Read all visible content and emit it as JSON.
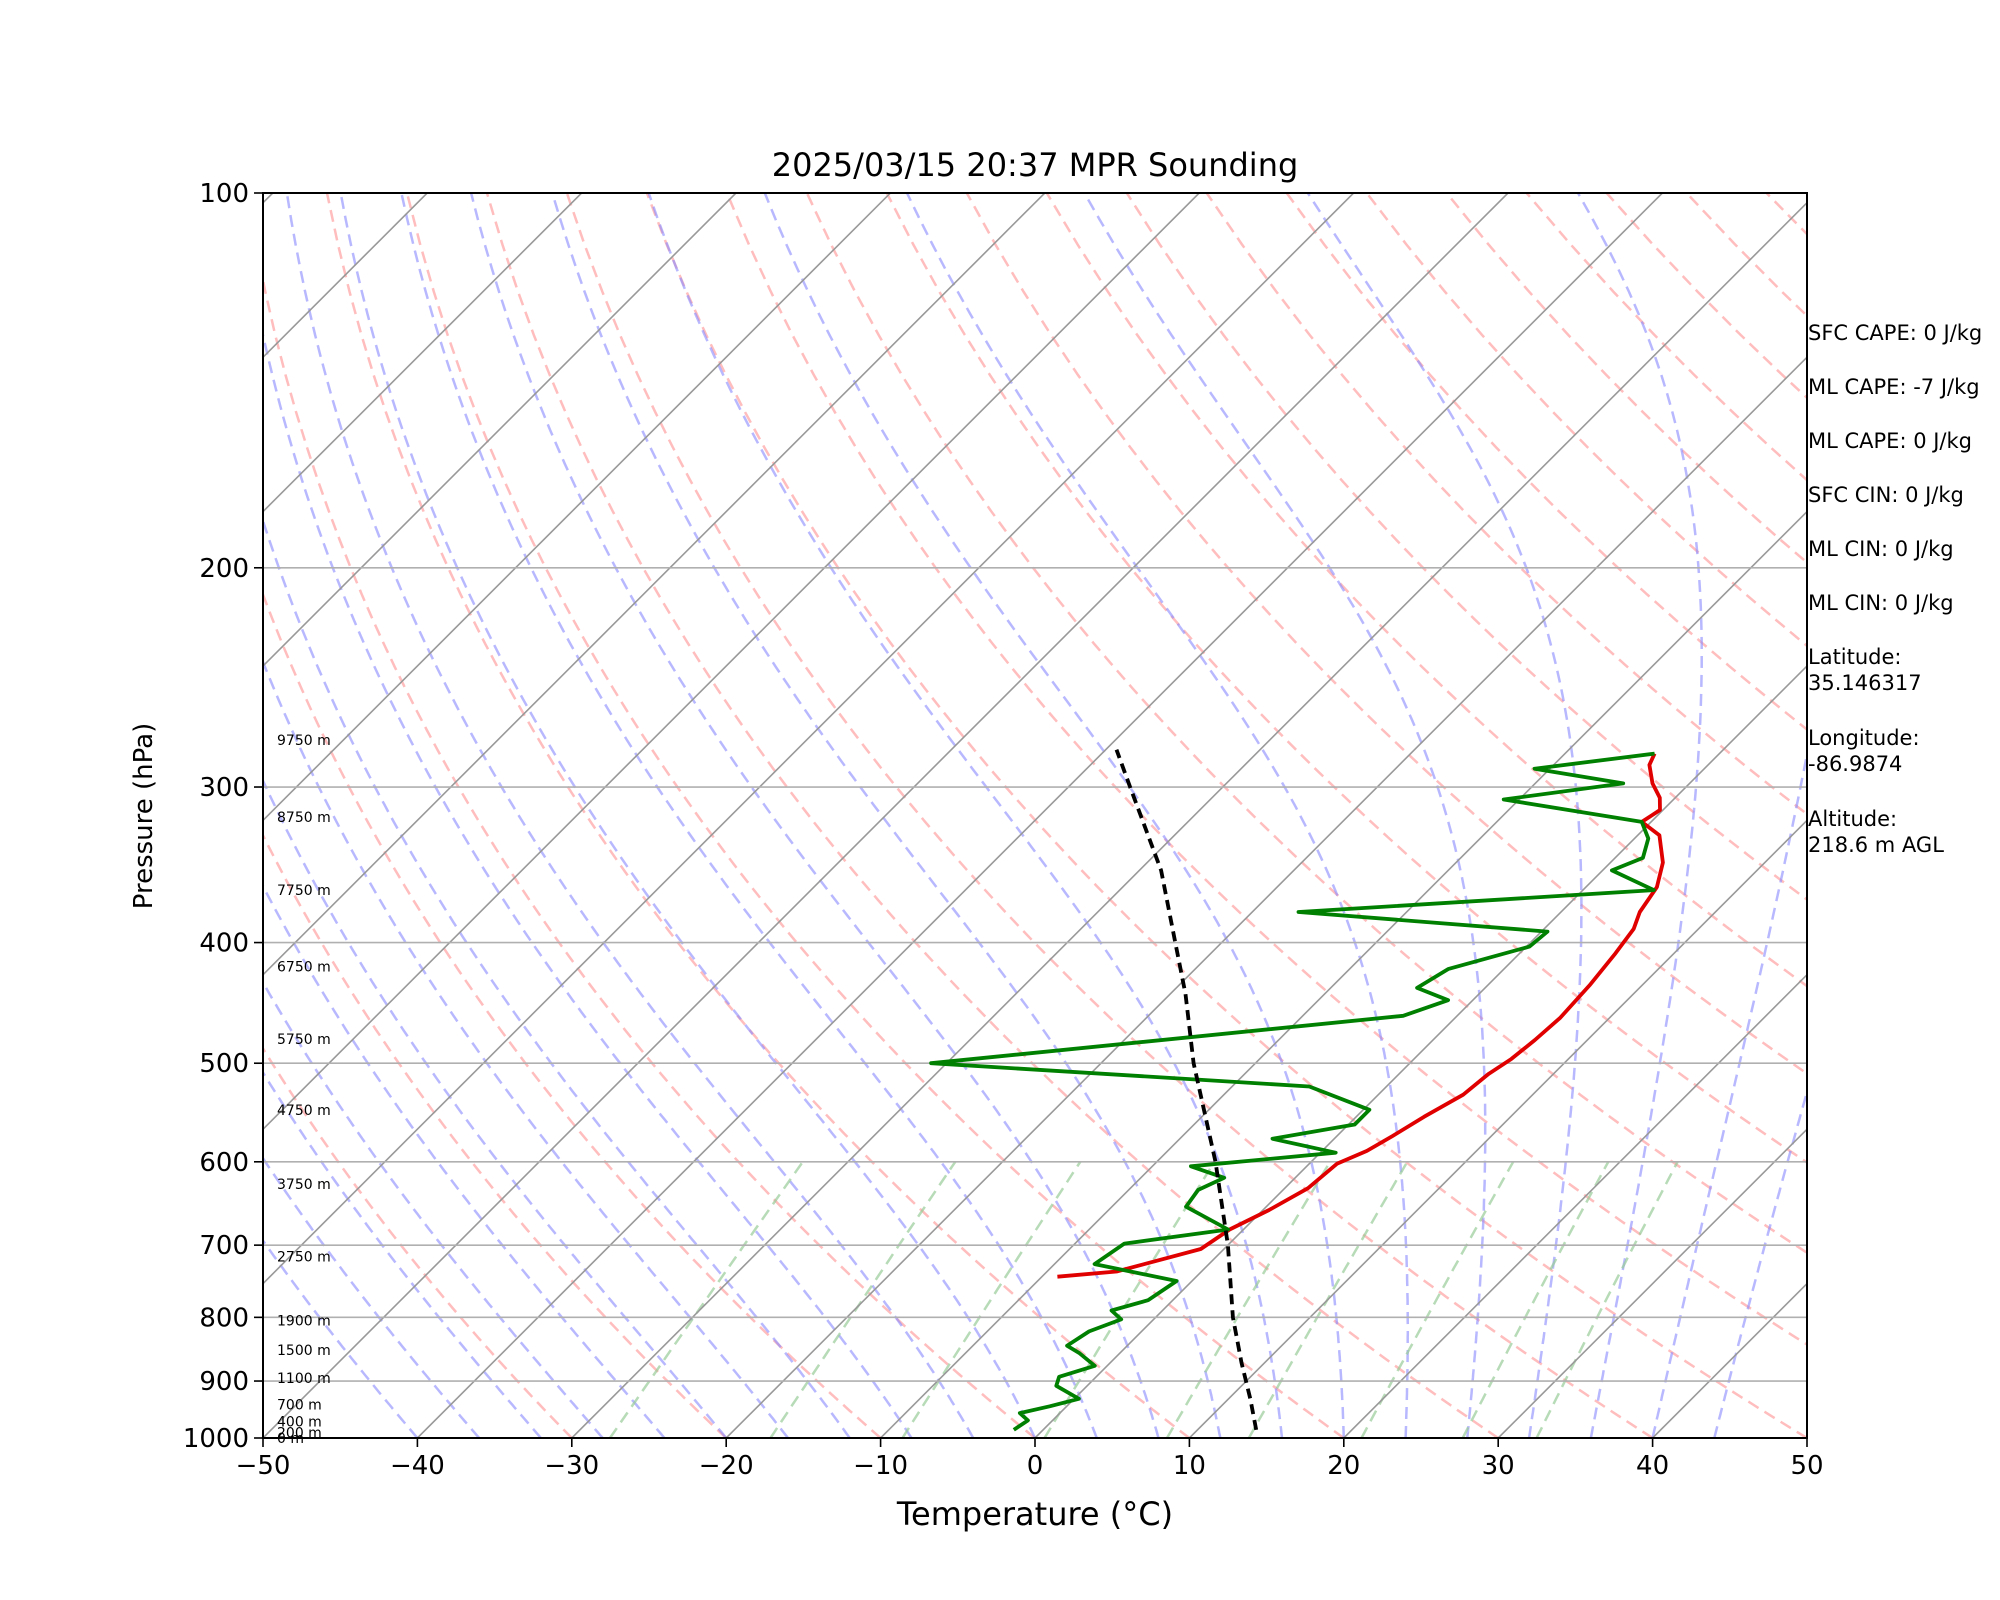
{
  "chart_data": {
    "type": "line",
    "title": "2025/03/15 20:37 MPR Sounding",
    "xlabel": "Temperature (°C)",
    "ylabel": "Pressure (hPa)",
    "xlim": [
      -50,
      50
    ],
    "ylim": [
      1000,
      100
    ],
    "y_scale": "log",
    "skew": "isotherms tilted 45°",
    "x_ticks": [
      -50,
      -40,
      -30,
      -20,
      -10,
      0,
      10,
      20,
      30,
      40,
      50
    ],
    "y_ticks": [
      100,
      200,
      300,
      400,
      500,
      600,
      700,
      800,
      900,
      1000
    ],
    "grid": true,
    "height_labels": [
      {
        "text": "9750 m",
        "p": 275
      },
      {
        "text": "8750 m",
        "p": 317
      },
      {
        "text": "7750 m",
        "p": 363
      },
      {
        "text": "6750 m",
        "p": 418
      },
      {
        "text": "5750 m",
        "p": 478
      },
      {
        "text": "4750 m",
        "p": 545
      },
      {
        "text": "3750 m",
        "p": 625
      },
      {
        "text": "2750 m",
        "p": 715
      },
      {
        "text": "1900 m",
        "p": 805
      },
      {
        "text": "1500 m",
        "p": 850
      },
      {
        "text": "1100 m",
        "p": 895
      },
      {
        "text": "700 m",
        "p": 940
      },
      {
        "text": "400 m",
        "p": 970
      },
      {
        "text": "200 m",
        "p": 990
      },
      {
        "text": "0 m",
        "p": 1000
      }
    ],
    "series": [
      {
        "role": "temperature",
        "color": "#e00000",
        "points": [
          [
            282,
            -4.2
          ],
          [
            288,
            -3.8
          ],
          [
            298,
            -2.4
          ],
          [
            306,
            -1.0
          ],
          [
            313,
            -0.2
          ],
          [
            320,
            -0.6
          ],
          [
            328,
            1.4
          ],
          [
            345,
            3.4
          ],
          [
            361,
            4.6
          ],
          [
            378,
            5.1
          ],
          [
            390,
            5.8
          ],
          [
            408,
            6.2
          ],
          [
            433,
            6.6
          ],
          [
            460,
            6.8
          ],
          [
            479,
            6.6
          ],
          [
            496,
            6.3
          ],
          [
            510,
            5.8
          ],
          [
            530,
            5.5
          ],
          [
            552,
            4.4
          ],
          [
            572,
            3.6
          ],
          [
            588,
            2.9
          ],
          [
            602,
            1.8
          ],
          [
            630,
            1.5
          ],
          [
            656,
            0.4
          ],
          [
            680,
            -0.9
          ],
          [
            705,
            -1.5
          ],
          [
            735,
            -5.5
          ],
          [
            742,
            -9.0
          ]
        ]
      },
      {
        "role": "dewpoint",
        "color": "#008000",
        "points": [
          [
            282,
            -4.2
          ],
          [
            290,
            -11.0
          ],
          [
            298,
            -4.3
          ],
          [
            307,
            -11.0
          ],
          [
            320,
            -0.6
          ],
          [
            330,
            0.9
          ],
          [
            342,
            1.8
          ],
          [
            350,
            0.6
          ],
          [
            363,
            4.6
          ],
          [
            378,
            -17.0
          ],
          [
            392,
            0.4
          ],
          [
            403,
            0.2
          ],
          [
            420,
            -3.6
          ],
          [
            435,
            -4.4
          ],
          [
            445,
            -1.6
          ],
          [
            458,
            -3.5
          ],
          [
            500,
            -31.0
          ],
          [
            522,
            -5.0
          ],
          [
            545,
            0.4
          ],
          [
            560,
            0.4
          ],
          [
            575,
            -4.0
          ],
          [
            590,
            1.0
          ],
          [
            605,
            -7.5
          ],
          [
            618,
            -4.6
          ],
          [
            632,
            -5.5
          ],
          [
            652,
            -5.2
          ],
          [
            680,
            -1.0
          ],
          [
            698,
            -6.8
          ],
          [
            725,
            -7.4
          ],
          [
            748,
            -1.0
          ],
          [
            775,
            -1.6
          ],
          [
            790,
            -3.3
          ],
          [
            803,
            -2.1
          ],
          [
            821,
            -3.4
          ],
          [
            843,
            -3.9
          ],
          [
            855,
            -2.6
          ],
          [
            875,
            -0.8
          ],
          [
            893,
            -2.4
          ],
          [
            908,
            -2.0
          ],
          [
            930,
            0.3
          ],
          [
            943,
            -1.1
          ],
          [
            955,
            -2.6
          ],
          [
            968,
            -1.6
          ],
          [
            985,
            -1.9
          ]
        ]
      },
      {
        "role": "parcel",
        "color": "#000000",
        "style": "dashed",
        "points": [
          [
            985,
            13.8
          ],
          [
            930,
            11.4
          ],
          [
            870,
            8.5
          ],
          [
            800,
            5.0
          ],
          [
            700,
            0.0
          ],
          [
            600,
            -6.2
          ],
          [
            500,
            -14.0
          ],
          [
            440,
            -19.0
          ],
          [
            400,
            -23.0
          ],
          [
            350,
            -28.6
          ],
          [
            300,
            -36.0
          ],
          [
            280,
            -39.3
          ]
        ]
      }
    ],
    "background_lines": {
      "dry_adiabat_color": "#ff9999",
      "moist_adiabat_color": "#8888ff",
      "mixing_ratio_color": "#99cc99",
      "isotherm_color": "#999999"
    }
  },
  "info": {
    "sfc_cape": "SFC CAPE: 0 J/kg",
    "ml_cape_1": "ML CAPE: -7 J/kg",
    "ml_cape_2": "ML CAPE: 0 J/kg",
    "sfc_cin": "SFC CIN: 0 J/kg",
    "ml_cin_1": "ML CIN: 0 J/kg",
    "ml_cin_2": "ML CIN: 0 J/kg",
    "latitude_label": "Latitude:",
    "latitude_value": "35.146317",
    "longitude_label": "Longitude:",
    "longitude_value": "-86.9874",
    "altitude_label": "Altitude:",
    "altitude_value": "218.6 m AGL"
  }
}
